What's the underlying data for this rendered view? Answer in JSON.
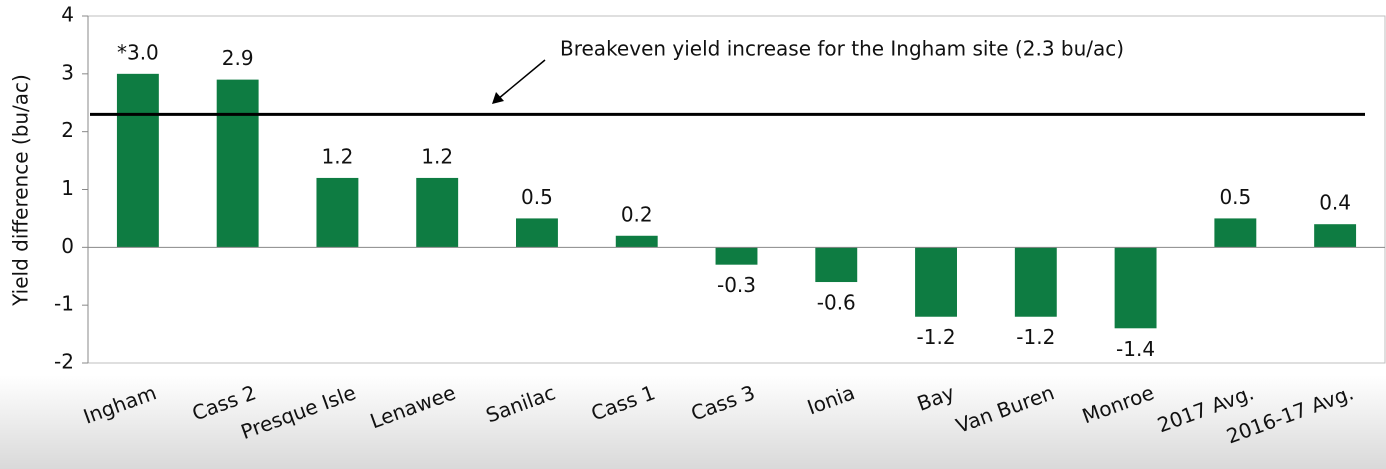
{
  "chart_data": {
    "type": "bar",
    "y_label": "Yield difference (bu/ac)",
    "categories": [
      "Ingham",
      "Cass 2",
      "Presque Isle",
      "Lenawee",
      "Sanilac",
      "Cass 1",
      "Cass 3",
      "Ionia",
      "Bay",
      "Van Buren",
      "Monroe",
      "2017 Avg.",
      "2016-17 Avg."
    ],
    "values": [
      3.0,
      2.9,
      1.2,
      1.2,
      0.5,
      0.2,
      -0.3,
      -0.6,
      -1.2,
      -1.2,
      -1.4,
      0.5,
      0.4
    ],
    "value_labels": [
      "*3.0",
      "2.9",
      "1.2",
      "1.2",
      "0.5",
      "0.2",
      "-0.3",
      "-0.6",
      "-1.2",
      "-1.2",
      "-1.4",
      "0.5",
      "0.4"
    ],
    "color": "#0e7c42",
    "ylim": [
      -2,
      4
    ],
    "yticks": [
      -2,
      -1,
      0,
      1,
      2,
      3,
      4
    ],
    "reference_line": {
      "value": 2.3,
      "color": "#000000"
    },
    "annotation": "Breakeven yield increase for the Ingham site (2.3 bu/ac)"
  }
}
